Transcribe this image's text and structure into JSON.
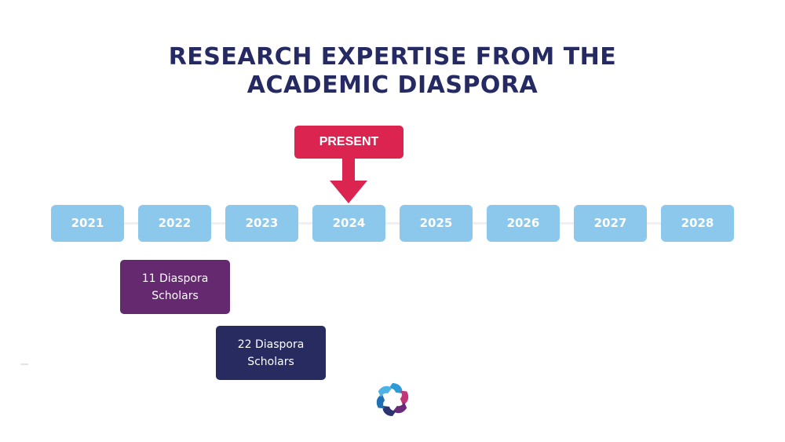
{
  "title": {
    "line1": "RESEARCH EXPERTISE FROM THE",
    "line2": "ACADEMIC DIASPORA"
  },
  "present_marker": {
    "label": "PRESENT",
    "year": "2024",
    "color": "#dc2451"
  },
  "timeline": {
    "years": [
      "2021",
      "2022",
      "2023",
      "2024",
      "2025",
      "2026",
      "2027",
      "2028"
    ],
    "year_box_color": "#8bc8ec"
  },
  "cohorts": [
    {
      "label": "11 Diaspora Scholars",
      "start_year": "2022",
      "end_year": "2023",
      "color": "#64296f"
    },
    {
      "label": "22 Diaspora Scholars",
      "start_year": "2023",
      "end_year": "2024",
      "color": "#282b60"
    }
  ],
  "logo": {
    "icon": "organization-logo-icon"
  }
}
